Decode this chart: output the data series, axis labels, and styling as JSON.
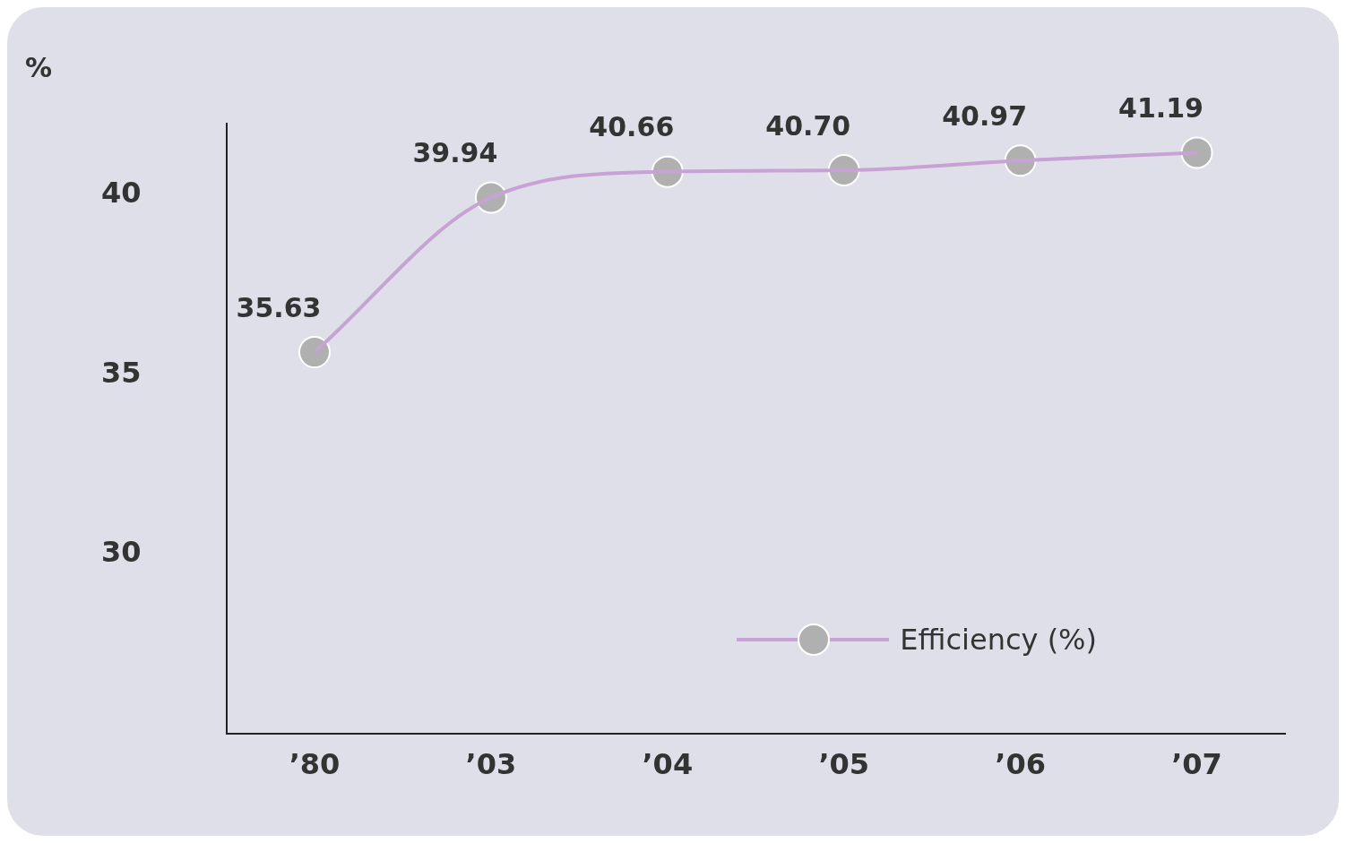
{
  "chart_data": {
    "type": "line",
    "ylabel": "%",
    "categories": [
      "’80",
      "’03",
      "’04",
      "’05",
      "’06",
      "’07"
    ],
    "series": [
      {
        "name": "Efficiency (%)",
        "color": "#c8a2d4",
        "values": [
          35.63,
          39.94,
          40.66,
          40.7,
          40.97,
          41.19
        ]
      }
    ],
    "ylim": [
      25,
      42
    ],
    "yticks": [
      30,
      35,
      40
    ],
    "value_labels": [
      "35.63",
      "39.94",
      "40.66",
      "40.70",
      "40.97",
      "41.19"
    ],
    "grid": false,
    "legend": "bottom right",
    "marker": "circle",
    "line_style": "solid"
  }
}
